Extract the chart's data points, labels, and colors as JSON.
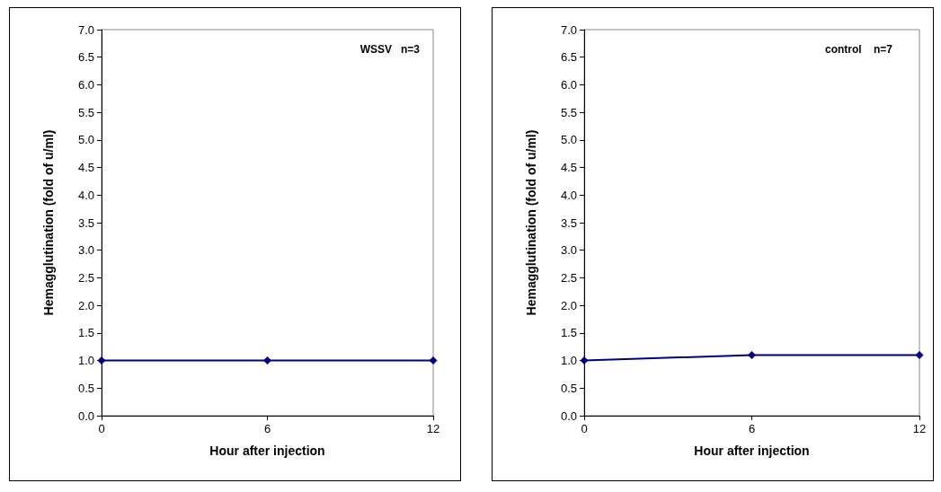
{
  "chart_data": [
    {
      "type": "line",
      "xlabel": "Hour after injection",
      "ylabel": "Hemagglutination (fold of u/ml)",
      "annotations": [
        "WSSV   n=3"
      ],
      "x": [
        0,
        6,
        12
      ],
      "series": [
        {
          "color": "#000080",
          "values": [
            1.0,
            1.0,
            1.0
          ]
        }
      ],
      "xlim": [
        0,
        12
      ],
      "xticks": [
        0,
        6,
        12
      ],
      "ylim": [
        0,
        7
      ],
      "yticks": [
        {
          "value": 0,
          "label": "0.0"
        },
        0.5,
        {
          "value": 1,
          "label": "1.0"
        },
        1.5,
        {
          "value": 2,
          "label": "2.0"
        },
        2.5,
        {
          "value": 3,
          "label": "3.0"
        },
        3.5,
        {
          "value": 4,
          "label": "4.0"
        },
        4.5,
        {
          "value": 5,
          "label": "5.0"
        },
        5.5,
        {
          "value": 6,
          "label": "6.0"
        },
        6.5,
        {
          "value": 7,
          "label": "7.0"
        }
      ],
      "marker": "diamond",
      "line_style": "solid",
      "grid": false
    },
    {
      "type": "line",
      "xlabel": "Hour after injection",
      "ylabel": "Hemagglutination (fold of u/ml)",
      "annotations": [
        "control    n=7"
      ],
      "x": [
        0,
        6,
        12
      ],
      "series": [
        {
          "color": "#000080",
          "values": [
            1.0,
            1.1,
            1.1
          ]
        }
      ],
      "xlim": [
        0,
        12
      ],
      "xticks": [
        0,
        6,
        12
      ],
      "ylim": [
        0,
        7
      ],
      "yticks": [
        {
          "value": 0,
          "label": "0.0"
        },
        0.5,
        {
          "value": 1,
          "label": "1.0"
        },
        1.5,
        {
          "value": 2,
          "label": "2.0"
        },
        2.5,
        {
          "value": 3,
          "label": "3.0"
        },
        3.5,
        {
          "value": 4,
          "label": "4.0"
        },
        4.5,
        {
          "value": 5,
          "label": "5.0"
        },
        5.5,
        {
          "value": 6,
          "label": "6.0"
        },
        6.5,
        {
          "value": 7,
          "label": "7.0"
        }
      ],
      "marker": "diamond",
      "line_style": "solid",
      "grid": false
    }
  ]
}
